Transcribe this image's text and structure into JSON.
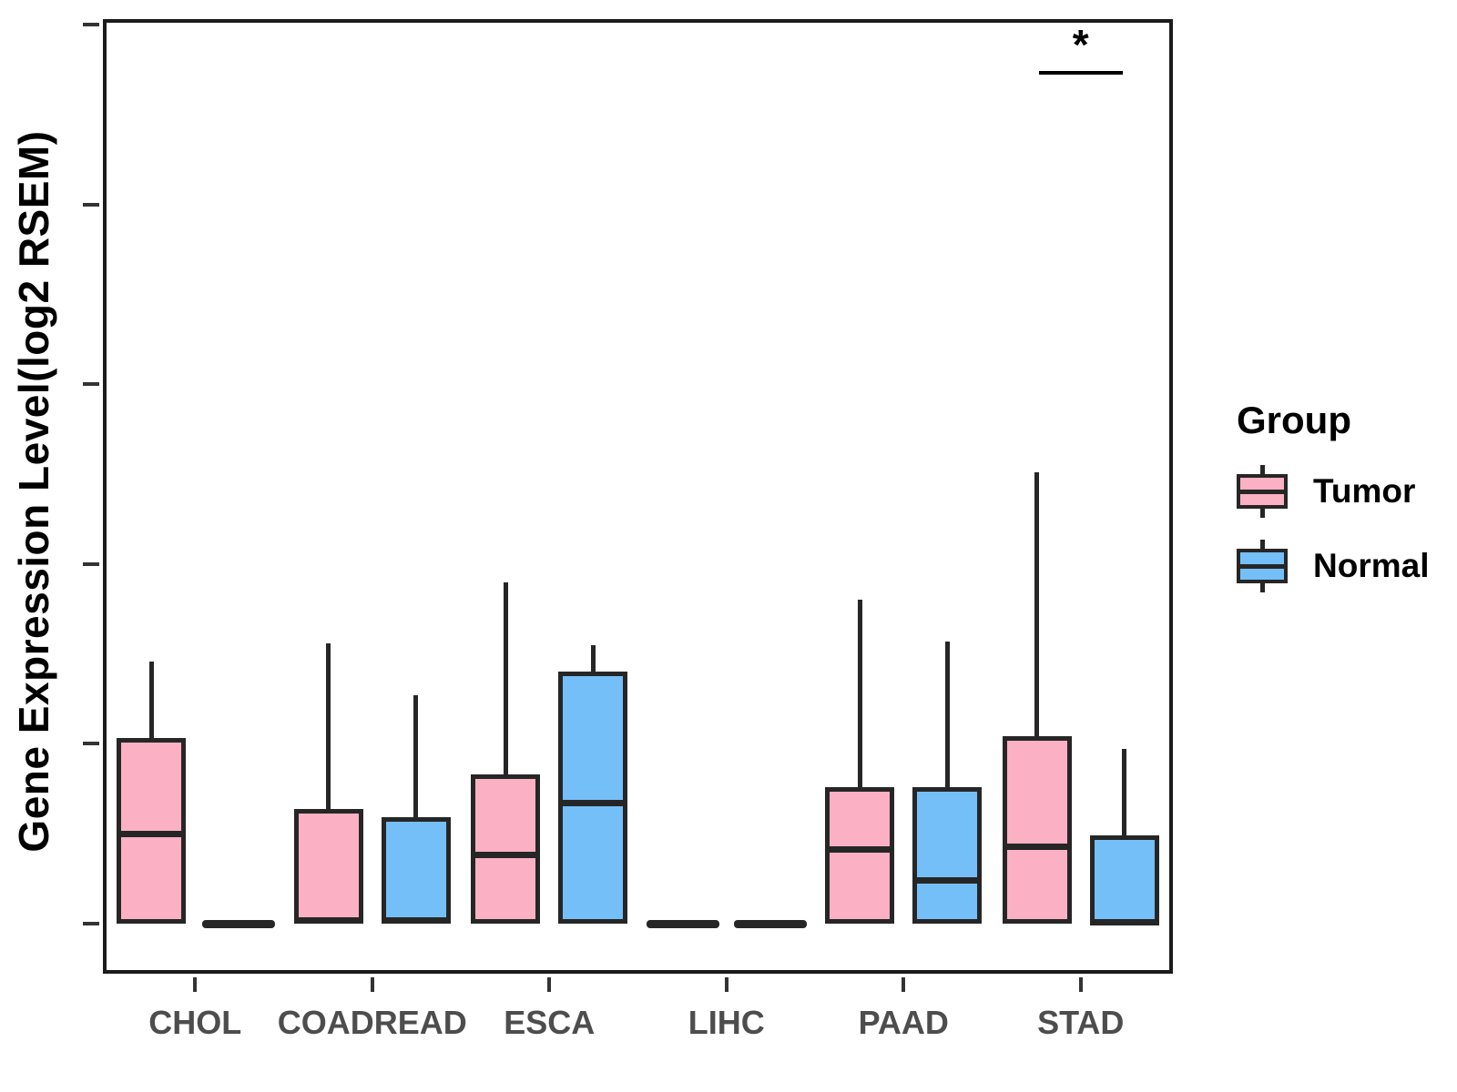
{
  "chart_data": {
    "type": "boxplot",
    "title": "",
    "ylabel": "Gene Expression Level(log2 RSEM)",
    "xlabel": "",
    "ylim": [
      0,
      5
    ],
    "yticks": [
      0,
      1,
      2,
      3,
      4,
      5
    ],
    "grid": "off",
    "categories": [
      "CHOL",
      "COADREAD",
      "ESCA",
      "LIHC",
      "PAAD",
      "STAD"
    ],
    "series": [
      {
        "name": "Tumor",
        "color": "#FBB1C3",
        "values": [
          {
            "low": 0,
            "q1": 0,
            "median": 0.5,
            "q3": 1.03,
            "high": 1.46
          },
          {
            "low": 0,
            "q1": 0,
            "median": 0.02,
            "q3": 0.64,
            "high": 1.56
          },
          {
            "low": 0,
            "q1": 0,
            "median": 0.38,
            "q3": 0.83,
            "high": 1.9
          },
          {
            "low": 0,
            "q1": 0,
            "median": 0,
            "q3": 0,
            "high": 0
          },
          {
            "low": 0,
            "q1": 0,
            "median": 0.41,
            "q3": 0.76,
            "high": 1.8
          },
          {
            "low": 0,
            "q1": 0,
            "median": 0.43,
            "q3": 1.04,
            "high": 2.51
          }
        ]
      },
      {
        "name": "Normal",
        "color": "#75BFF8",
        "values": [
          {
            "low": 0,
            "q1": 0,
            "median": 0,
            "q3": 0,
            "high": 0
          },
          {
            "low": 0,
            "q1": 0,
            "median": 0.02,
            "q3": 0.59,
            "high": 1.27
          },
          {
            "low": 0,
            "q1": 0,
            "median": 0.67,
            "q3": 1.4,
            "high": 1.55
          },
          {
            "low": 0,
            "q1": 0,
            "median": 0,
            "q3": 0,
            "high": 0
          },
          {
            "low": 0,
            "q1": 0,
            "median": 0.24,
            "q3": 0.76,
            "high": 1.57
          },
          {
            "low": 0,
            "q1": 0,
            "median": 0.01,
            "q3": 0.49,
            "high": 0.97
          }
        ]
      }
    ],
    "legend": {
      "title": "Group",
      "position": "right"
    },
    "annotations": [
      {
        "type": "significance-bracket",
        "label": "*",
        "category": "STAD",
        "y_value": 4.74
      }
    ],
    "colors": {
      "stroke": "#262626",
      "tick_label": "#4d4d4d",
      "axis_title": "#000000"
    }
  }
}
